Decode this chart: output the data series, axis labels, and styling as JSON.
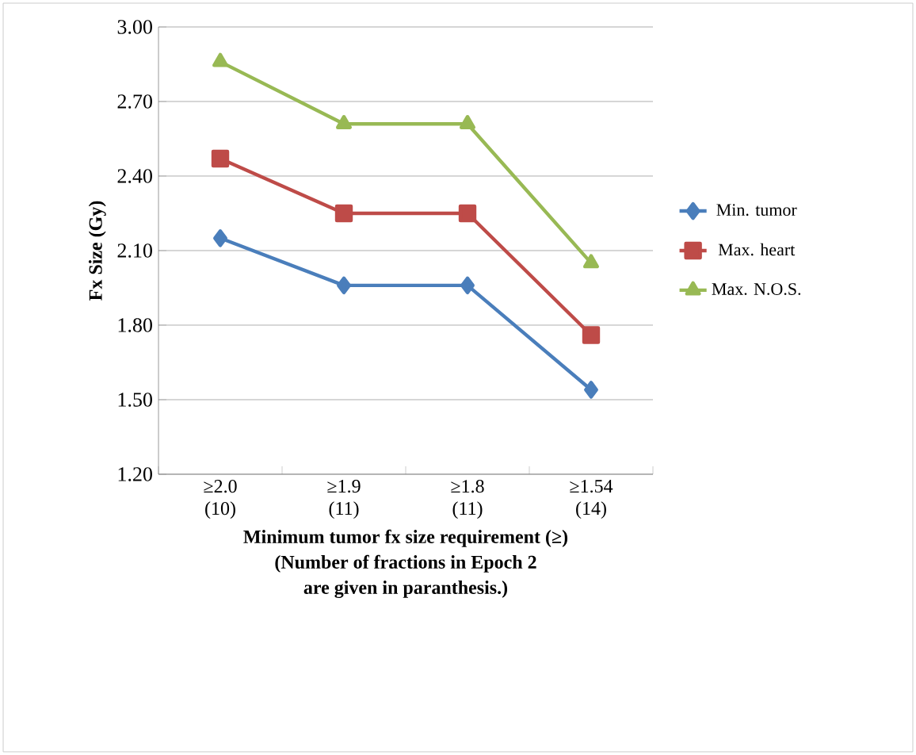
{
  "chart_data": {
    "type": "line",
    "xlabel": "Minimum tumor fx size requirement (≥)\n(Number of fractions in Epoch 2\nare given in paranthesis.)",
    "ylabel": "Fx Size (Gy)",
    "categories": [
      "≥2.0\n(10)",
      "≥1.9\n(11)",
      "≥1.8\n(11)",
      "≥1.54\n(14)"
    ],
    "series": [
      {
        "name": "Min. tumor",
        "color": "#4a7ebb",
        "marker": "diamond",
        "values": [
          2.15,
          1.96,
          1.96,
          1.54
        ]
      },
      {
        "name": "Max. heart",
        "color": "#be4b48",
        "marker": "square",
        "values": [
          2.47,
          2.25,
          2.25,
          1.76
        ]
      },
      {
        "name": "Max. N.O.S.",
        "color": "#98b954",
        "marker": "triangle",
        "values": [
          2.86,
          2.61,
          2.61,
          2.05
        ]
      }
    ],
    "ylim": [
      1.2,
      3.0
    ],
    "yticks": [
      {
        "value": 1.2,
        "label": "1.20"
      },
      {
        "value": 1.5,
        "label": "1.50"
      },
      {
        "value": 1.8,
        "label": "1.80"
      },
      {
        "value": 2.1,
        "label": "2.10"
      },
      {
        "value": 2.4,
        "label": "2.40"
      },
      {
        "value": 2.7,
        "label": "2.70"
      },
      {
        "value": 3.0,
        "label": "3.00"
      }
    ],
    "grid": "y",
    "legend": "right"
  }
}
